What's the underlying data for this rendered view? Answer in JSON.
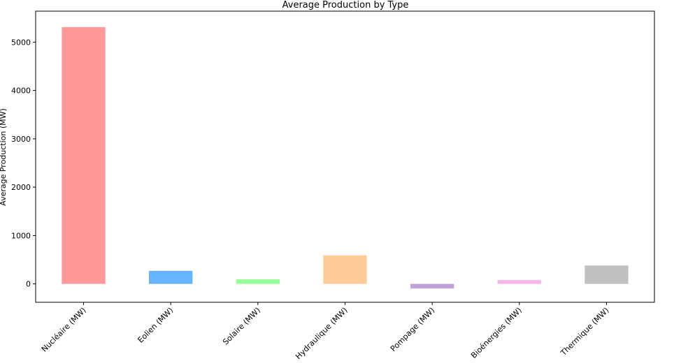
{
  "chart_data": {
    "type": "bar",
    "title": "Average Production by Type",
    "xlabel": "",
    "ylabel": "Average Production (MW)",
    "categories": [
      "Nucléaire (MW)",
      "Eolien (MW)",
      "Solaire (MW)",
      "Hydraulique (MW)",
      "Pompage (MW)",
      "Bioénergies (MW)",
      "Thermique (MW)"
    ],
    "values": [
      5310,
      270,
      95,
      590,
      -95,
      80,
      380
    ],
    "colors": [
      "#ff9999",
      "#66b3ff",
      "#99ff99",
      "#ffcc99",
      "#c2a0d8",
      "#f7b6e8",
      "#c0c0c0"
    ],
    "ylim": [
      -380,
      5640
    ],
    "yticks": [
      0,
      1000,
      2000,
      3000,
      4000,
      5000
    ],
    "grid": false,
    "legend": "none"
  }
}
